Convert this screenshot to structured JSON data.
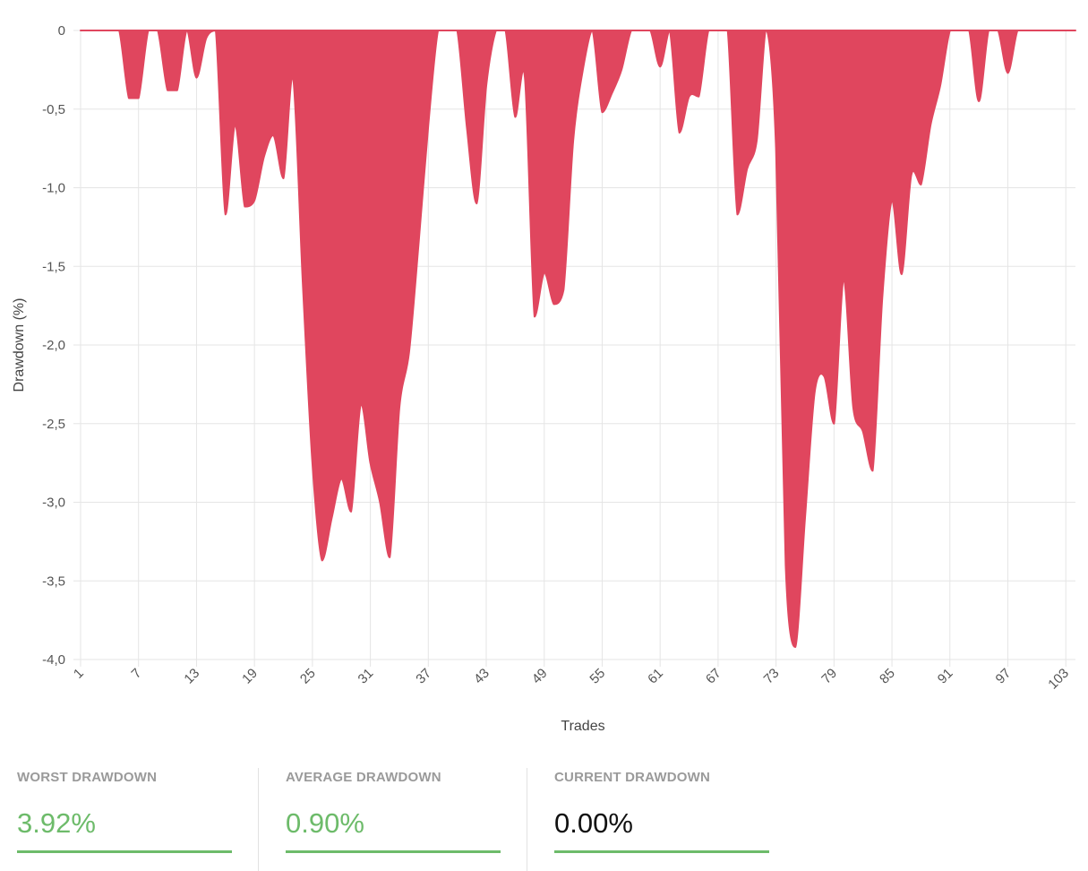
{
  "chart_data": {
    "type": "area",
    "xlabel": "Trades",
    "ylabel": "Drawdown (%)",
    "ylim": [
      -4.0,
      0
    ],
    "y_ticks": [
      "0",
      "-0,5",
      "-1,0",
      "-1,5",
      "-2,0",
      "-2,5",
      "-3,0",
      "-3,5",
      "-4,0"
    ],
    "y_tick_values": [
      0,
      -0.5,
      -1.0,
      -1.5,
      -2.0,
      -2.5,
      -3.0,
      -3.5,
      -4.0
    ],
    "x_ticks": [
      "1",
      "7",
      "13",
      "19",
      "25",
      "31",
      "37",
      "43",
      "49",
      "55",
      "61",
      "67",
      "73",
      "79",
      "85",
      "91",
      "97",
      "103"
    ],
    "x_tick_values": [
      1,
      7,
      13,
      19,
      25,
      31,
      37,
      43,
      49,
      55,
      61,
      67,
      73,
      79,
      85,
      91,
      97,
      103
    ],
    "x_range": [
      1,
      104
    ],
    "grid": true,
    "fill_color": "#e0465e",
    "x": [
      1,
      2,
      3,
      4,
      5,
      6,
      7,
      8,
      9,
      10,
      11,
      12,
      13,
      14,
      15,
      16,
      17,
      18,
      19,
      20,
      21,
      22,
      23,
      24,
      25,
      26,
      27,
      28,
      29,
      30,
      31,
      32,
      33,
      34,
      35,
      36,
      37,
      38,
      39,
      40,
      41,
      42,
      43,
      44,
      45,
      46,
      47,
      48,
      49,
      50,
      51,
      52,
      53,
      54,
      55,
      56,
      57,
      58,
      59,
      60,
      61,
      62,
      63,
      64,
      65,
      66,
      67,
      68,
      69,
      70,
      71,
      72,
      73,
      74,
      75,
      76,
      77,
      78,
      79,
      80,
      81,
      82,
      83,
      84,
      85,
      86,
      87,
      88,
      89,
      90,
      91,
      92,
      93,
      94,
      95,
      96,
      97,
      98,
      99,
      100,
      101,
      102,
      103,
      104
    ],
    "values": [
      0,
      0,
      0,
      0,
      0,
      -0.43,
      -0.43,
      0,
      0,
      -0.38,
      -0.38,
      0,
      -0.3,
      -0.05,
      0,
      -1.17,
      -0.6,
      -1.12,
      -1.08,
      -0.8,
      -0.67,
      -0.94,
      -0.3,
      -1.6,
      -2.75,
      -3.37,
      -3.1,
      -2.85,
      -3.06,
      -2.38,
      -2.75,
      -3.0,
      -3.35,
      -2.4,
      -2.05,
      -1.35,
      -0.6,
      0,
      0,
      0,
      -0.62,
      -1.1,
      -0.35,
      0,
      0,
      -0.55,
      -0.3,
      -1.82,
      -1.54,
      -1.74,
      -1.65,
      -0.7,
      -0.25,
      0,
      -0.52,
      -0.4,
      -0.25,
      0,
      0,
      0,
      -0.23,
      0,
      -0.65,
      -0.42,
      -0.42,
      0,
      0,
      0,
      -1.17,
      -0.88,
      -0.7,
      0,
      -0.75,
      -3.4,
      -3.92,
      -3.1,
      -2.3,
      -2.2,
      -2.5,
      -1.58,
      -2.4,
      -2.55,
      -2.8,
      -1.7,
      -1.08,
      -1.55,
      -0.92,
      -0.98,
      -0.6,
      -0.35,
      0,
      0,
      0,
      -0.45,
      0,
      0,
      -0.27,
      0,
      0,
      0,
      0,
      0,
      0,
      0
    ]
  },
  "stats": [
    {
      "label": "WORST DRAWDOWN",
      "value": "3.92%",
      "value_color": "#6dbb6a"
    },
    {
      "label": "AVERAGE DRAWDOWN",
      "value": "0.90%",
      "value_color": "#6dbb6a"
    },
    {
      "label": "CURRENT DRAWDOWN",
      "value": "0.00%",
      "value_color": "#111111"
    }
  ],
  "colors": {
    "grid": "#e5e5e5",
    "underline": "#6dbb6a"
  }
}
